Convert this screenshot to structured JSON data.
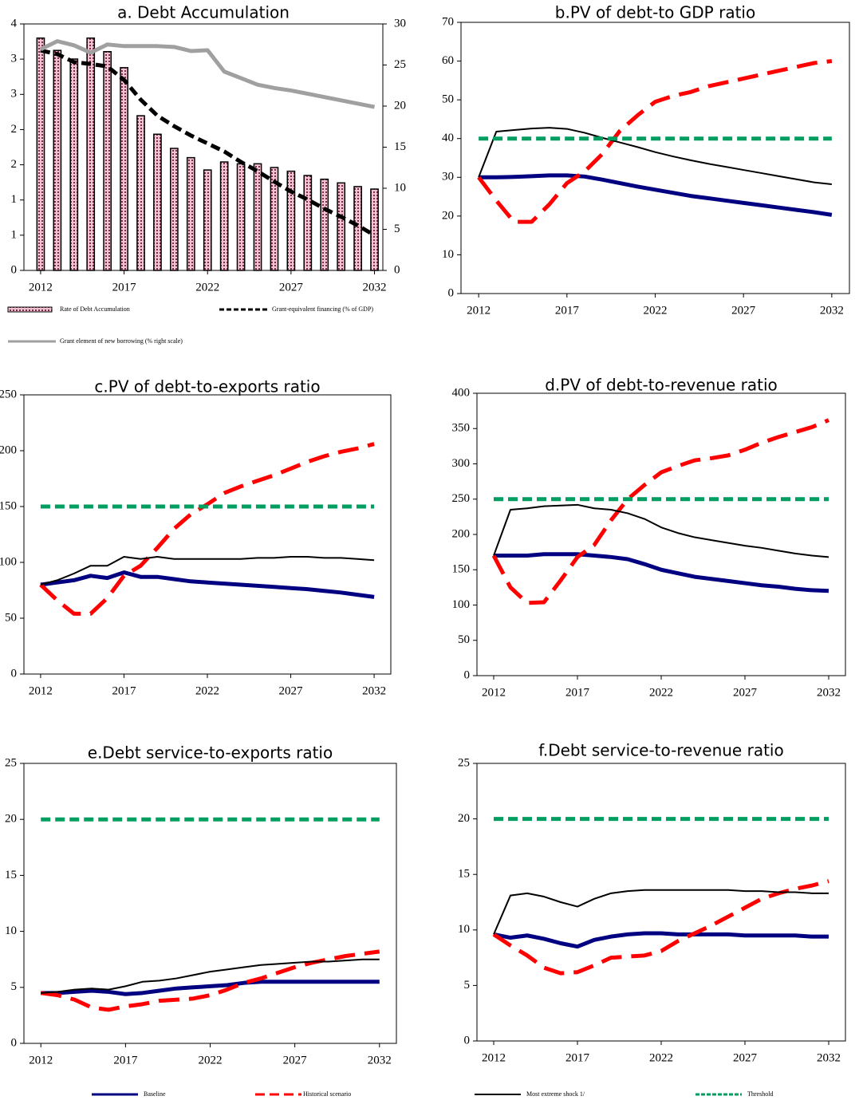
{
  "chart_data": [
    {
      "type": "combo",
      "title": "a. Debt Accumulation",
      "x": [
        2012,
        2013,
        2014,
        2015,
        2016,
        2017,
        2018,
        2019,
        2020,
        2021,
        2022,
        2023,
        2024,
        2025,
        2026,
        2027,
        2028,
        2029,
        2030,
        2031,
        2032
      ],
      "xlim": [
        2011,
        2032.5
      ],
      "xticks": [
        2012,
        2017,
        2022,
        2027,
        2032
      ],
      "ylim": [
        0,
        4
      ],
      "yticks": [
        0,
        {
          "value": 0.5714,
          "label": "1"
        },
        {
          "value": 1.1429,
          "label": "1"
        },
        {
          "value": 1.7143,
          "label": "2"
        },
        {
          "value": 2.2857,
          "label": "2"
        },
        {
          "value": 2.8571,
          "label": "3"
        },
        {
          "value": 3.4286,
          "label": "3"
        },
        4
      ],
      "y2lim": [
        0,
        30
      ],
      "y2ticks": [
        0,
        5,
        10,
        15,
        20,
        25,
        30
      ],
      "series": [
        {
          "name": "Rate of Debt Accumulation",
          "style": "bar",
          "color": "#f2c2d0",
          "values": [
            3.77,
            3.57,
            3.43,
            3.77,
            3.55,
            3.29,
            2.51,
            2.21,
            1.98,
            1.83,
            1.63,
            1.76,
            1.73,
            1.73,
            1.67,
            1.61,
            1.54,
            1.48,
            1.42,
            1.36,
            1.32
          ]
        },
        {
          "name": "Grant-equivalent financing (% of GDP)",
          "style": "short-dash",
          "color": "#000000",
          "values": [
            3.57,
            3.51,
            3.38,
            3.35,
            3.31,
            3.09,
            2.77,
            2.51,
            2.34,
            2.19,
            2.06,
            1.93,
            1.76,
            1.61,
            1.44,
            1.28,
            1.15,
            1.0,
            0.87,
            0.73,
            0.57
          ]
        },
        {
          "name": "Grant element of new borrowing (% right scale)",
          "style": "solid-heavy",
          "color": "#a0a0a0",
          "axis": "y2",
          "values": [
            26.9,
            27.9,
            27.4,
            26.5,
            27.5,
            27.3,
            27.3,
            27.3,
            27.2,
            26.7,
            26.8,
            24.2,
            23.4,
            22.6,
            22.2,
            21.9,
            21.5,
            21.1,
            20.7,
            20.3,
            19.9
          ]
        }
      ]
    },
    {
      "type": "line",
      "title": "b.PV of debt-to GDP ratio",
      "x": [
        2012,
        2013,
        2014,
        2015,
        2016,
        2017,
        2018,
        2019,
        2020,
        2021,
        2022,
        2023,
        2024,
        2025,
        2026,
        2027,
        2028,
        2029,
        2030,
        2031,
        2032
      ],
      "xlim": [
        2011,
        2033
      ],
      "xticks": [
        2012,
        2017,
        2022,
        2027,
        2032
      ],
      "ylim": [
        0,
        70
      ],
      "yticks": [
        0,
        10,
        20,
        30,
        40,
        50,
        60,
        70
      ],
      "series": [
        {
          "style": "solid-heavy",
          "color": "#000080",
          "values": [
            30,
            30,
            30.1,
            30.3,
            30.5,
            30.5,
            30.2,
            29.4,
            28.5,
            27.6,
            26.8,
            26,
            25.2,
            24.6,
            24,
            23.4,
            22.8,
            22.2,
            21.6,
            21,
            20.3
          ]
        },
        {
          "style": "long-dash",
          "color": "#ff0000",
          "values": [
            30,
            24,
            18.5,
            18.5,
            23,
            28.5,
            31.5,
            36,
            42,
            46,
            49.5,
            51,
            52,
            53.5,
            54.5,
            55.5,
            56.5,
            57.5,
            58.5,
            59.5,
            60
          ]
        },
        {
          "style": "solid-thin",
          "color": "#000000",
          "values": [
            30,
            41.8,
            42.2,
            42.6,
            42.8,
            42.5,
            41.5,
            40.2,
            39,
            37.8,
            36.5,
            35.4,
            34.4,
            33.5,
            32.7,
            31.9,
            31.1,
            30.3,
            29.5,
            28.7,
            28.2
          ]
        },
        {
          "style": "short-dash",
          "color": "#009e60",
          "values": [
            40,
            40,
            40,
            40,
            40,
            40,
            40,
            40,
            40,
            40,
            40,
            40,
            40,
            40,
            40,
            40,
            40,
            40,
            40,
            40,
            40
          ]
        }
      ]
    },
    {
      "type": "line",
      "title": "c.PV of debt-to-exports ratio",
      "x": [
        2012,
        2013,
        2014,
        2015,
        2016,
        2017,
        2018,
        2019,
        2020,
        2021,
        2022,
        2023,
        2024,
        2025,
        2026,
        2027,
        2028,
        2029,
        2030,
        2031,
        2032
      ],
      "xlim": [
        2011,
        2033
      ],
      "xticks": [
        2012,
        2017,
        2022,
        2027,
        2032
      ],
      "ylim": [
        0,
        250
      ],
      "yticks": [
        0,
        50,
        100,
        150,
        200,
        250
      ],
      "series": [
        {
          "style": "solid-heavy",
          "color": "#000080",
          "values": [
            80,
            82,
            84,
            88,
            86,
            91,
            87,
            87,
            85,
            83,
            82,
            81,
            80,
            79,
            78,
            77,
            76,
            74.5,
            73,
            71,
            69
          ]
        },
        {
          "style": "long-dash",
          "color": "#ff0000",
          "values": [
            80,
            66,
            54,
            54,
            68,
            88,
            97,
            113,
            130,
            143,
            152,
            162,
            168,
            173,
            178,
            184,
            190,
            195,
            199,
            202,
            206
          ]
        },
        {
          "style": "solid-thin",
          "color": "#000000",
          "values": [
            80,
            84,
            90,
            97,
            97,
            105,
            103,
            105,
            103,
            103,
            103,
            103,
            103,
            104,
            104,
            105,
            105,
            104,
            104,
            103,
            102
          ]
        },
        {
          "style": "short-dash",
          "color": "#009e60",
          "values": [
            150,
            150,
            150,
            150,
            150,
            150,
            150,
            150,
            150,
            150,
            150,
            150,
            150,
            150,
            150,
            150,
            150,
            150,
            150,
            150,
            150
          ]
        }
      ]
    },
    {
      "type": "line",
      "title": "d.PV of debt-to-revenue ratio",
      "x": [
        2012,
        2013,
        2014,
        2015,
        2016,
        2017,
        2018,
        2019,
        2020,
        2021,
        2022,
        2023,
        2024,
        2025,
        2026,
        2027,
        2028,
        2029,
        2030,
        2031,
        2032
      ],
      "xlim": [
        2011,
        2033
      ],
      "xticks": [
        2012,
        2017,
        2022,
        2027,
        2032
      ],
      "ylim": [
        0,
        400
      ],
      "yticks": [
        0,
        50,
        100,
        150,
        200,
        250,
        300,
        350,
        400
      ],
      "series": [
        {
          "style": "solid-heavy",
          "color": "#000080",
          "values": [
            170,
            170,
            170,
            172,
            172,
            172,
            170,
            168,
            165,
            158,
            150,
            145,
            140,
            137,
            134,
            131,
            128,
            126,
            123,
            121,
            120
          ]
        },
        {
          "style": "long-dash",
          "color": "#ff0000",
          "values": [
            170,
            125,
            103,
            104,
            135,
            168,
            185,
            220,
            250,
            270,
            288,
            297,
            305,
            308,
            312,
            320,
            330,
            338,
            345,
            352,
            362
          ]
        },
        {
          "style": "solid-thin",
          "color": "#000000",
          "values": [
            170,
            235,
            237,
            240,
            241,
            242,
            237,
            235,
            230,
            222,
            210,
            202,
            196,
            192,
            188,
            184,
            181,
            177,
            173,
            170,
            168
          ]
        },
        {
          "style": "short-dash",
          "color": "#009e60",
          "values": [
            250,
            250,
            250,
            250,
            250,
            250,
            250,
            250,
            250,
            250,
            250,
            250,
            250,
            250,
            250,
            250,
            250,
            250,
            250,
            250,
            250
          ]
        }
      ]
    },
    {
      "type": "line",
      "title": "e.Debt service-to-exports ratio",
      "x": [
        2012,
        2013,
        2014,
        2015,
        2016,
        2017,
        2018,
        2019,
        2020,
        2021,
        2022,
        2023,
        2024,
        2025,
        2026,
        2027,
        2028,
        2029,
        2030,
        2031,
        2032
      ],
      "xlim": [
        2011,
        2033
      ],
      "xticks": [
        2012,
        2017,
        2022,
        2027,
        2032
      ],
      "ylim": [
        0,
        25
      ],
      "yticks": [
        0,
        5,
        10,
        15,
        20,
        25
      ],
      "series": [
        {
          "name": "Baseline",
          "style": "solid-heavy",
          "color": "#000080",
          "values": [
            4.5,
            4.5,
            4.6,
            4.7,
            4.6,
            4.4,
            4.5,
            4.7,
            4.9,
            5.0,
            5.1,
            5.2,
            5.4,
            5.5,
            5.5,
            5.5,
            5.5,
            5.5,
            5.5,
            5.5,
            5.5
          ]
        },
        {
          "name": "Historical scenario",
          "style": "long-dash",
          "color": "#ff0000",
          "values": [
            4.5,
            4.3,
            3.9,
            3.2,
            3.0,
            3.3,
            3.5,
            3.8,
            3.9,
            4.0,
            4.3,
            4.8,
            5.4,
            5.8,
            6.3,
            6.8,
            7.2,
            7.5,
            7.8,
            8.0,
            8.2
          ]
        },
        {
          "name": "Most extreme shock  1/",
          "style": "solid-thin",
          "color": "#000000",
          "values": [
            4.5,
            4.6,
            4.8,
            4.9,
            4.8,
            5.1,
            5.5,
            5.6,
            5.8,
            6.1,
            6.4,
            6.6,
            6.8,
            7.0,
            7.1,
            7.2,
            7.3,
            7.3,
            7.4,
            7.5,
            7.5
          ]
        },
        {
          "name": "Threshold",
          "style": "short-dash",
          "color": "#009e60",
          "values": [
            20,
            20,
            20,
            20,
            20,
            20,
            20,
            20,
            20,
            20,
            20,
            20,
            20,
            20,
            20,
            20,
            20,
            20,
            20,
            20,
            20
          ]
        }
      ]
    },
    {
      "type": "line",
      "title": "f.Debt service-to-revenue ratio",
      "x": [
        2012,
        2013,
        2014,
        2015,
        2016,
        2017,
        2018,
        2019,
        2020,
        2021,
        2022,
        2023,
        2024,
        2025,
        2026,
        2027,
        2028,
        2029,
        2030,
        2031,
        2032
      ],
      "xlim": [
        2011,
        2033
      ],
      "xticks": [
        2012,
        2017,
        2022,
        2027,
        2032
      ],
      "ylim": [
        0,
        25
      ],
      "yticks": [
        0,
        5,
        10,
        15,
        20,
        25
      ],
      "series": [
        {
          "style": "solid-heavy",
          "color": "#000080",
          "values": [
            9.6,
            9.3,
            9.5,
            9.2,
            8.8,
            8.5,
            9.1,
            9.4,
            9.6,
            9.7,
            9.7,
            9.6,
            9.6,
            9.6,
            9.6,
            9.5,
            9.5,
            9.5,
            9.5,
            9.4,
            9.4
          ]
        },
        {
          "style": "long-dash",
          "color": "#ff0000",
          "values": [
            9.6,
            8.6,
            7.7,
            6.6,
            6.1,
            6.2,
            6.8,
            7.5,
            7.6,
            7.7,
            8.1,
            9.0,
            9.7,
            10.4,
            11.2,
            12.0,
            12.8,
            13.3,
            13.7,
            14.0,
            14.4
          ]
        },
        {
          "style": "solid-thin",
          "color": "#000000",
          "values": [
            9.6,
            13.1,
            13.3,
            13.0,
            12.5,
            12.1,
            12.8,
            13.3,
            13.5,
            13.6,
            13.6,
            13.6,
            13.6,
            13.6,
            13.6,
            13.5,
            13.5,
            13.4,
            13.4,
            13.3,
            13.3
          ]
        },
        {
          "style": "short-dash",
          "color": "#009e60",
          "values": [
            20,
            20,
            20,
            20,
            20,
            20,
            20,
            20,
            20,
            20,
            20,
            20,
            20,
            20,
            20,
            20,
            20,
            20,
            20,
            20,
            20
          ]
        }
      ]
    }
  ]
}
